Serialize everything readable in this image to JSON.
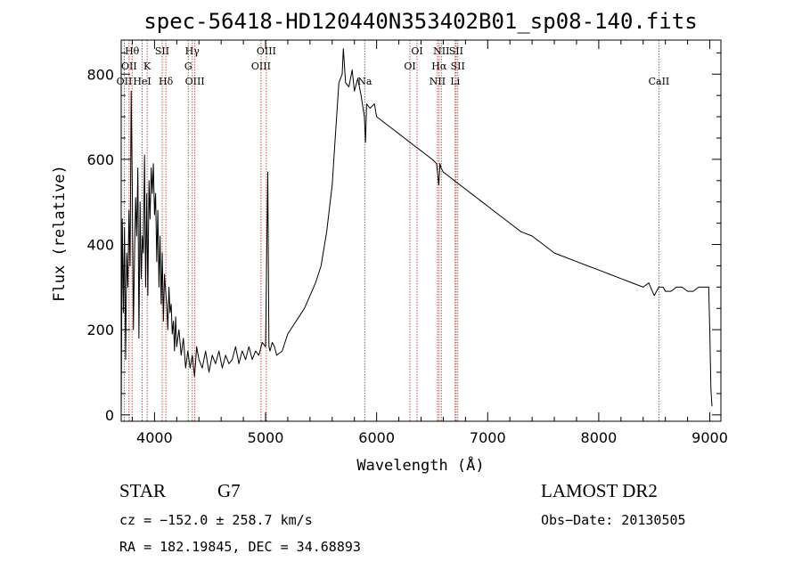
{
  "chart_data": {
    "type": "line",
    "title": "spec-56418-HD120440N353402B01_sp08-140.fits",
    "xlabel": "Wavelength (Å)",
    "ylabel": "Flux (relative)",
    "xlim": [
      3700,
      9100
    ],
    "ylim": [
      -15,
      880
    ],
    "xticks": [
      4000,
      5000,
      6000,
      7000,
      8000,
      9000
    ],
    "yticks": [
      0,
      200,
      400,
      600,
      800
    ],
    "grid": false,
    "series": [
      {
        "color": "#000000",
        "x": [
          3700,
          3710,
          3720,
          3730,
          3740,
          3750,
          3760,
          3770,
          3780,
          3790,
          3800,
          3810,
          3820,
          3830,
          3840,
          3850,
          3860,
          3870,
          3880,
          3890,
          3900,
          3910,
          3920,
          3930,
          3940,
          3950,
          3960,
          3970,
          3980,
          3990,
          4000,
          4010,
          4020,
          4030,
          4040,
          4050,
          4060,
          4070,
          4080,
          4090,
          4100,
          4110,
          4120,
          4130,
          4140,
          4150,
          4160,
          4170,
          4180,
          4190,
          4200,
          4220,
          4240,
          4260,
          4280,
          4300,
          4320,
          4340,
          4360,
          4380,
          4400,
          4430,
          4460,
          4490,
          4520,
          4550,
          4580,
          4610,
          4640,
          4670,
          4700,
          4730,
          4760,
          4790,
          4820,
          4850,
          4880,
          4910,
          4940,
          4970,
          5000,
          5020,
          5030,
          5040,
          5060,
          5080,
          5100,
          5150,
          5200,
          5250,
          5300,
          5350,
          5400,
          5450,
          5500,
          5550,
          5600,
          5630,
          5660,
          5690,
          5700,
          5720,
          5750,
          5780,
          5800,
          5830,
          5860,
          5890,
          5900,
          5910,
          5940,
          5980,
          6000,
          6050,
          6100,
          6150,
          6200,
          6250,
          6300,
          6350,
          6400,
          6450,
          6500,
          6540,
          6560,
          6570,
          6580,
          6600,
          6650,
          6700,
          6750,
          6800,
          6850,
          6900,
          6950,
          7000,
          7100,
          7200,
          7300,
          7400,
          7500,
          7600,
          7700,
          7800,
          7900,
          8000,
          8100,
          8200,
          8300,
          8400,
          8450,
          8500,
          8540,
          8560,
          8580,
          8600,
          8650,
          8700,
          8750,
          8800,
          8850,
          8900,
          8950,
          8990,
          9000,
          9010,
          9020
        ],
        "y": [
          0,
          460,
          240,
          440,
          130,
          380,
          300,
          480,
          350,
          760,
          520,
          200,
          380,
          510,
          420,
          580,
          180,
          500,
          320,
          420,
          380,
          610,
          300,
          520,
          280,
          550,
          460,
          580,
          520,
          590,
          470,
          520,
          360,
          480,
          300,
          420,
          260,
          380,
          220,
          330,
          290,
          260,
          200,
          300,
          240,
          260,
          190,
          220,
          150,
          230,
          160,
          200,
          140,
          180,
          110,
          150,
          110,
          140,
          90,
          160,
          130,
          110,
          150,
          100,
          140,
          120,
          150,
          110,
          140,
          120,
          130,
          160,
          120,
          150,
          130,
          160,
          130,
          150,
          140,
          170,
          160,
          570,
          160,
          150,
          170,
          160,
          140,
          150,
          190,
          210,
          230,
          250,
          280,
          310,
          350,
          430,
          540,
          660,
          780,
          800,
          860,
          780,
          770,
          810,
          760,
          790,
          750,
          700,
          640,
          730,
          720,
          730,
          700,
          690,
          680,
          670,
          660,
          650,
          640,
          630,
          620,
          610,
          600,
          590,
          540,
          590,
          580,
          570,
          560,
          550,
          540,
          530,
          520,
          510,
          500,
          490,
          470,
          450,
          430,
          420,
          400,
          380,
          370,
          360,
          350,
          340,
          330,
          320,
          310,
          300,
          310,
          280,
          300,
          300,
          300,
          290,
          290,
          300,
          300,
          290,
          290,
          300,
          300,
          300,
          200,
          60,
          20
        ]
      }
    ],
    "spectral_lines": [
      {
        "wl": 3728,
        "label": "OII",
        "row": 3
      },
      {
        "wl": 3771,
        "label": "OII",
        "row": 2
      },
      {
        "wl": 3798,
        "label": "Hθ",
        "row": 1
      },
      {
        "wl": 3889,
        "label": "HeI",
        "row": 3
      },
      {
        "wl": 3934,
        "label": "K",
        "row": 2
      },
      {
        "wl": 4069,
        "label": "SII",
        "row": 1
      },
      {
        "wl": 4102,
        "label": "Hδ",
        "row": 3
      },
      {
        "wl": 4304,
        "label": "G",
        "row": 2
      },
      {
        "wl": 4340,
        "label": "Hγ",
        "row": 1
      },
      {
        "wl": 4363,
        "label": "OIII",
        "row": 3
      },
      {
        "wl": 4959,
        "label": "OIII",
        "row": 2
      },
      {
        "wl": 5007,
        "label": "OIII",
        "row": 1
      },
      {
        "wl": 5893,
        "label": "Na",
        "row": 3
      },
      {
        "wl": 6300,
        "label": "OI",
        "row": 2
      },
      {
        "wl": 6364,
        "label": "OI",
        "row": 1
      },
      {
        "wl": 6548,
        "label": "NII",
        "row": 3
      },
      {
        "wl": 6563,
        "label": "Hα",
        "row": 2
      },
      {
        "wl": 6583,
        "label": "NII",
        "row": 1
      },
      {
        "wl": 6707,
        "label": "Li",
        "row": 3
      },
      {
        "wl": 6716,
        "label": "SII",
        "row": 1
      },
      {
        "wl": 6731,
        "label": "SII",
        "row": 2
      },
      {
        "wl": 8542,
        "label": "CaII",
        "row": 3
      }
    ],
    "line_color": "#c0504d"
  },
  "info": {
    "class": "STAR",
    "subclass": "G7",
    "survey": "LAMOST DR2",
    "cz": "cz = −152.0 ± 258.7 km/s",
    "obs_date": "Obs−Date: 20130505",
    "radec": "RA = 182.19845, DEC =  34.68893"
  }
}
